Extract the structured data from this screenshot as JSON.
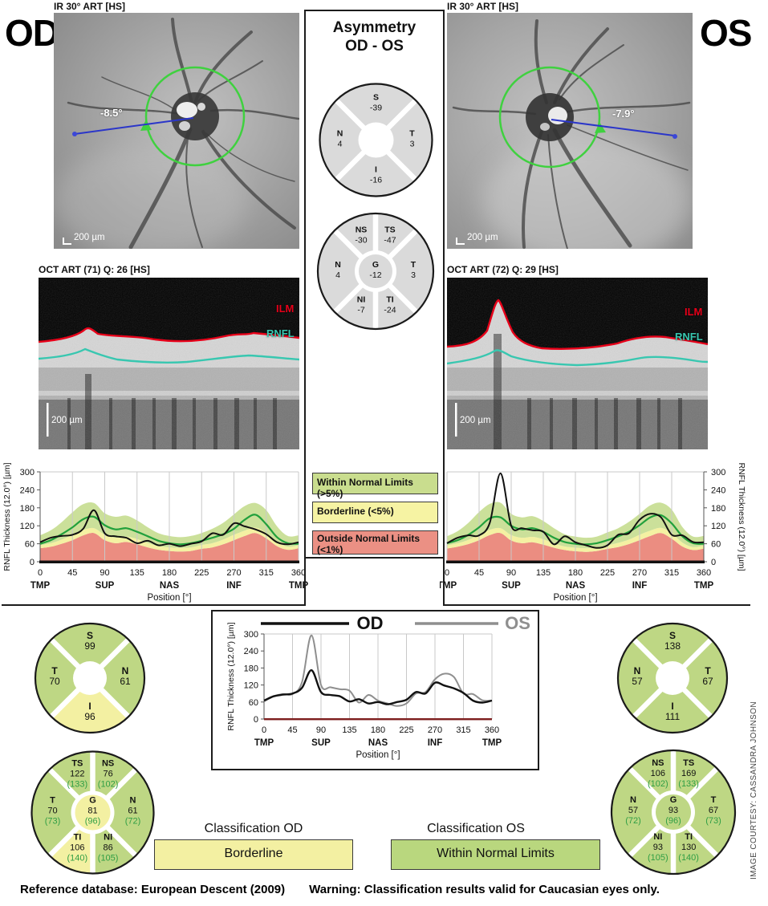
{
  "title_labels": {
    "od": "OD",
    "os": "OS"
  },
  "fundus": {
    "caption": "IR 30° ART [HS]",
    "od_angle": "-8.5°",
    "os_angle": "-7.9°",
    "scale": "200 µm"
  },
  "oct": {
    "od_caption": "OCT ART (71) Q: 26 [HS]",
    "os_caption": "OCT ART (72) Q: 29 [HS]",
    "ilm": "ILM",
    "rnfl": "RNFL",
    "scale": "200 µm"
  },
  "asymmetry": {
    "title_line1": "Asymmetry",
    "title_line2": "OD - OS",
    "quadrant_wheel": {
      "sectors": [
        {
          "name": "S",
          "value": "-39",
          "angle": [
            45,
            135
          ]
        },
        {
          "name": "N",
          "value": "4",
          "angle": [
            135,
            225
          ]
        },
        {
          "name": "T",
          "value": "3",
          "angle": [
            -45,
            45
          ]
        },
        {
          "name": "I",
          "value": "-16",
          "angle": [
            225,
            315
          ]
        }
      ]
    },
    "sector_wheel": {
      "center": {
        "name": "G",
        "value": "-12"
      },
      "sectors": [
        {
          "name": "NS",
          "value": "-30",
          "angle": [
            90,
            135
          ]
        },
        {
          "name": "TS",
          "value": "-47",
          "angle": [
            45,
            90
          ]
        },
        {
          "name": "N",
          "value": "4",
          "angle": [
            135,
            225
          ]
        },
        {
          "name": "T",
          "value": "3",
          "angle": [
            -45,
            45
          ]
        },
        {
          "name": "NI",
          "value": "-7",
          "angle": [
            225,
            270
          ]
        },
        {
          "name": "TI",
          "value": "-24",
          "angle": [
            270,
            315
          ]
        }
      ]
    }
  },
  "legend": {
    "normal": "Within Normal Limits (>5%)",
    "borderline": "Borderline (<5%)",
    "outside": "Outside Normal Limits (<1%)"
  },
  "wheels": {
    "od_quadrant": {
      "sectors": [
        {
          "name": "S",
          "value": "99",
          "color": "green",
          "angle": [
            45,
            135
          ]
        },
        {
          "name": "T",
          "value": "70",
          "color": "green",
          "angle": [
            135,
            225
          ]
        },
        {
          "name": "N",
          "value": "61",
          "color": "green",
          "angle": [
            -45,
            45
          ]
        },
        {
          "name": "I",
          "value": "96",
          "color": "yellow",
          "angle": [
            225,
            315
          ]
        }
      ]
    },
    "od_sector": {
      "center": {
        "name": "G",
        "value": "81",
        "norm": "(96)",
        "color": "yellow"
      },
      "sectors": [
        {
          "name": "TS",
          "value": "122",
          "norm": "(133)",
          "color": "green",
          "angle": [
            90,
            135
          ]
        },
        {
          "name": "NS",
          "value": "76",
          "norm": "(102)",
          "color": "green",
          "angle": [
            45,
            90
          ]
        },
        {
          "name": "T",
          "value": "70",
          "norm": "(73)",
          "color": "green",
          "angle": [
            135,
            225
          ]
        },
        {
          "name": "N",
          "value": "61",
          "norm": "(72)",
          "color": "green",
          "angle": [
            -45,
            45
          ]
        },
        {
          "name": "TI",
          "value": "106",
          "norm": "(140)",
          "color": "yellow",
          "angle": [
            225,
            270
          ]
        },
        {
          "name": "NI",
          "value": "86",
          "norm": "(105)",
          "color": "green",
          "angle": [
            270,
            315
          ]
        }
      ]
    },
    "os_quadrant": {
      "sectors": [
        {
          "name": "S",
          "value": "138",
          "color": "green",
          "angle": [
            45,
            135
          ]
        },
        {
          "name": "N",
          "value": "57",
          "color": "green",
          "angle": [
            135,
            225
          ]
        },
        {
          "name": "T",
          "value": "67",
          "color": "green",
          "angle": [
            -45,
            45
          ]
        },
        {
          "name": "I",
          "value": "111",
          "color": "green",
          "angle": [
            225,
            315
          ]
        }
      ]
    },
    "os_sector": {
      "center": {
        "name": "G",
        "value": "93",
        "norm": "(96)",
        "color": "green"
      },
      "sectors": [
        {
          "name": "NS",
          "value": "106",
          "norm": "(102)",
          "color": "green",
          "angle": [
            90,
            135
          ]
        },
        {
          "name": "TS",
          "value": "169",
          "norm": "(133)",
          "color": "green",
          "angle": [
            45,
            90
          ]
        },
        {
          "name": "N",
          "value": "57",
          "norm": "(72)",
          "color": "green",
          "angle": [
            135,
            225
          ]
        },
        {
          "name": "T",
          "value": "67",
          "norm": "(73)",
          "color": "green",
          "angle": [
            -45,
            45
          ]
        },
        {
          "name": "NI",
          "value": "93",
          "norm": "(105)",
          "color": "green",
          "angle": [
            225,
            270
          ]
        },
        {
          "name": "TI",
          "value": "130",
          "norm": "(140)",
          "color": "green",
          "angle": [
            270,
            315
          ]
        }
      ]
    }
  },
  "classification": {
    "od_title": "Classification OD",
    "od_value": "Borderline",
    "os_title": "Classification OS",
    "os_value": "Within Normal Limits"
  },
  "footer": {
    "reference": "Reference database: European Descent (2009)",
    "warning": "Warning: Classification results valid for Caucasian eyes only."
  },
  "credit": "IMAGE COURTESY: CASSANDRA JOHNSON",
  "colors": {
    "wheel_green": "#bed784",
    "wheel_yellow": "#f3f0a2",
    "asymmetry_gray": "#dadada",
    "band_green": "#cbe09a",
    "band_yellow": "#f4f1a2",
    "band_red": "#eb8d81",
    "mean_green": "#21a03c",
    "od_line": "#111111",
    "os_line": "#8f8f8f",
    "norm_text": "#2f9e44",
    "baseline_red": "#7e1f1f",
    "ilm_red": "#e60019",
    "rnfl_teal": "#38c7b0",
    "badge_yellow": "#f3f0a2",
    "badge_green": "#b9d77e",
    "legend_green": "#c9dd8e",
    "legend_yellow": "#f6f3a3",
    "legend_red": "#eb9084"
  },
  "chart_data": [
    {
      "id": "od_rnfl_profile",
      "type": "area",
      "eye": "OD",
      "x": [
        0,
        15,
        30,
        45,
        60,
        75,
        90,
        105,
        120,
        135,
        150,
        165,
        180,
        195,
        210,
        225,
        240,
        255,
        270,
        285,
        300,
        315,
        330,
        345,
        360
      ],
      "measured": [
        65,
        80,
        86,
        90,
        110,
        172,
        95,
        85,
        80,
        62,
        70,
        55,
        60,
        52,
        60,
        68,
        95,
        90,
        128,
        118,
        108,
        92,
        65,
        58,
        65
      ],
      "normal_mean": [
        60,
        72,
        92,
        115,
        142,
        150,
        122,
        108,
        112,
        100,
        85,
        70,
        62,
        58,
        62,
        70,
        80,
        92,
        110,
        140,
        157,
        125,
        82,
        62,
        60
      ],
      "band_green_top": [
        88,
        105,
        132,
        165,
        192,
        196,
        162,
        150,
        154,
        138,
        115,
        95,
        86,
        82,
        86,
        96,
        110,
        130,
        158,
        186,
        196,
        172,
        118,
        86,
        88
      ],
      "band_yellow_top": [
        55,
        62,
        74,
        90,
        106,
        112,
        90,
        80,
        84,
        76,
        62,
        52,
        48,
        46,
        48,
        56,
        62,
        74,
        90,
        104,
        114,
        96,
        66,
        50,
        55
      ],
      "band_red_top": [
        45,
        50,
        60,
        72,
        88,
        96,
        72,
        62,
        66,
        58,
        48,
        40,
        36,
        34,
        36,
        43,
        48,
        58,
        72,
        86,
        96,
        78,
        52,
        40,
        45
      ],
      "ylabel": "RNFL Thickness (12.0°) [µm]",
      "xlabel": "Position [°]",
      "xticks": [
        0,
        45,
        90,
        135,
        180,
        225,
        270,
        315,
        360
      ],
      "region_labels": [
        "TMP",
        "SUP",
        "NAS",
        "INF",
        "TMP"
      ],
      "yticks": [
        0,
        60,
        120,
        180,
        240,
        300
      ],
      "ylim": [
        0,
        300
      ],
      "y_axis_side": "left"
    },
    {
      "id": "os_rnfl_profile",
      "type": "area",
      "eye": "OS",
      "x": [
        0,
        15,
        30,
        45,
        60,
        75,
        90,
        105,
        120,
        135,
        150,
        165,
        180,
        195,
        210,
        225,
        240,
        255,
        270,
        285,
        300,
        315,
        330,
        345,
        360
      ],
      "measured": [
        62,
        80,
        88,
        88,
        130,
        295,
        120,
        112,
        105,
        100,
        58,
        85,
        65,
        55,
        46,
        55,
        90,
        95,
        140,
        160,
        148,
        90,
        88,
        66,
        65
      ],
      "normal_mean": [
        62,
        72,
        90,
        115,
        145,
        148,
        120,
        108,
        112,
        100,
        80,
        66,
        60,
        58,
        62,
        72,
        85,
        100,
        122,
        148,
        155,
        128,
        85,
        62,
        60
      ],
      "band_green_top": [
        85,
        102,
        130,
        166,
        193,
        197,
        160,
        148,
        152,
        136,
        112,
        92,
        84,
        80,
        84,
        98,
        112,
        133,
        160,
        188,
        197,
        174,
        116,
        84,
        86
      ],
      "band_yellow_top": [
        54,
        62,
        73,
        90,
        107,
        112,
        89,
        80,
        83,
        75,
        61,
        51,
        47,
        45,
        47,
        55,
        63,
        74,
        90,
        104,
        113,
        95,
        64,
        49,
        54
      ],
      "band_red_top": [
        44,
        50,
        59,
        72,
        89,
        96,
        71,
        62,
        65,
        57,
        47,
        39,
        35,
        33,
        36,
        43,
        49,
        59,
        72,
        86,
        96,
        77,
        51,
        39,
        44
      ],
      "ylabel": "RNFL Thickness (12.0°) [µm]",
      "xlabel": "Position [°]",
      "xticks": [
        0,
        45,
        90,
        135,
        180,
        225,
        270,
        315,
        360
      ],
      "region_labels": [
        "TMP",
        "SUP",
        "NAS",
        "INF",
        "TMP"
      ],
      "yticks": [
        0,
        60,
        120,
        180,
        240,
        300
      ],
      "ylim": [
        0,
        300
      ],
      "y_axis_side": "right"
    },
    {
      "id": "od_os_overlay",
      "type": "line",
      "x": [
        0,
        15,
        30,
        45,
        60,
        75,
        90,
        105,
        120,
        135,
        150,
        165,
        180,
        195,
        210,
        225,
        240,
        255,
        270,
        285,
        300,
        315,
        330,
        345,
        360
      ],
      "series": [
        {
          "name": "OD",
          "values": [
            65,
            80,
            86,
            90,
            110,
            172,
            95,
            85,
            80,
            62,
            70,
            55,
            60,
            52,
            60,
            68,
            95,
            90,
            128,
            118,
            108,
            92,
            65,
            58,
            65
          ]
        },
        {
          "name": "OS",
          "values": [
            62,
            80,
            88,
            88,
            130,
            295,
            120,
            112,
            105,
            100,
            58,
            85,
            65,
            55,
            46,
            55,
            90,
            95,
            140,
            160,
            148,
            90,
            88,
            66,
            65
          ]
        }
      ],
      "legend": [
        "OD",
        "OS"
      ],
      "ylabel": "RNFL Thickness (12.0°) [µm]",
      "xlabel": "Position [°]",
      "xticks": [
        0,
        45,
        90,
        135,
        180,
        225,
        270,
        315,
        360
      ],
      "region_labels": [
        "TMP",
        "SUP",
        "NAS",
        "INF",
        "TMP"
      ],
      "yticks": [
        0,
        60,
        120,
        180,
        240,
        300
      ],
      "ylim": [
        0,
        300
      ],
      "y_axis_side": "left"
    }
  ]
}
